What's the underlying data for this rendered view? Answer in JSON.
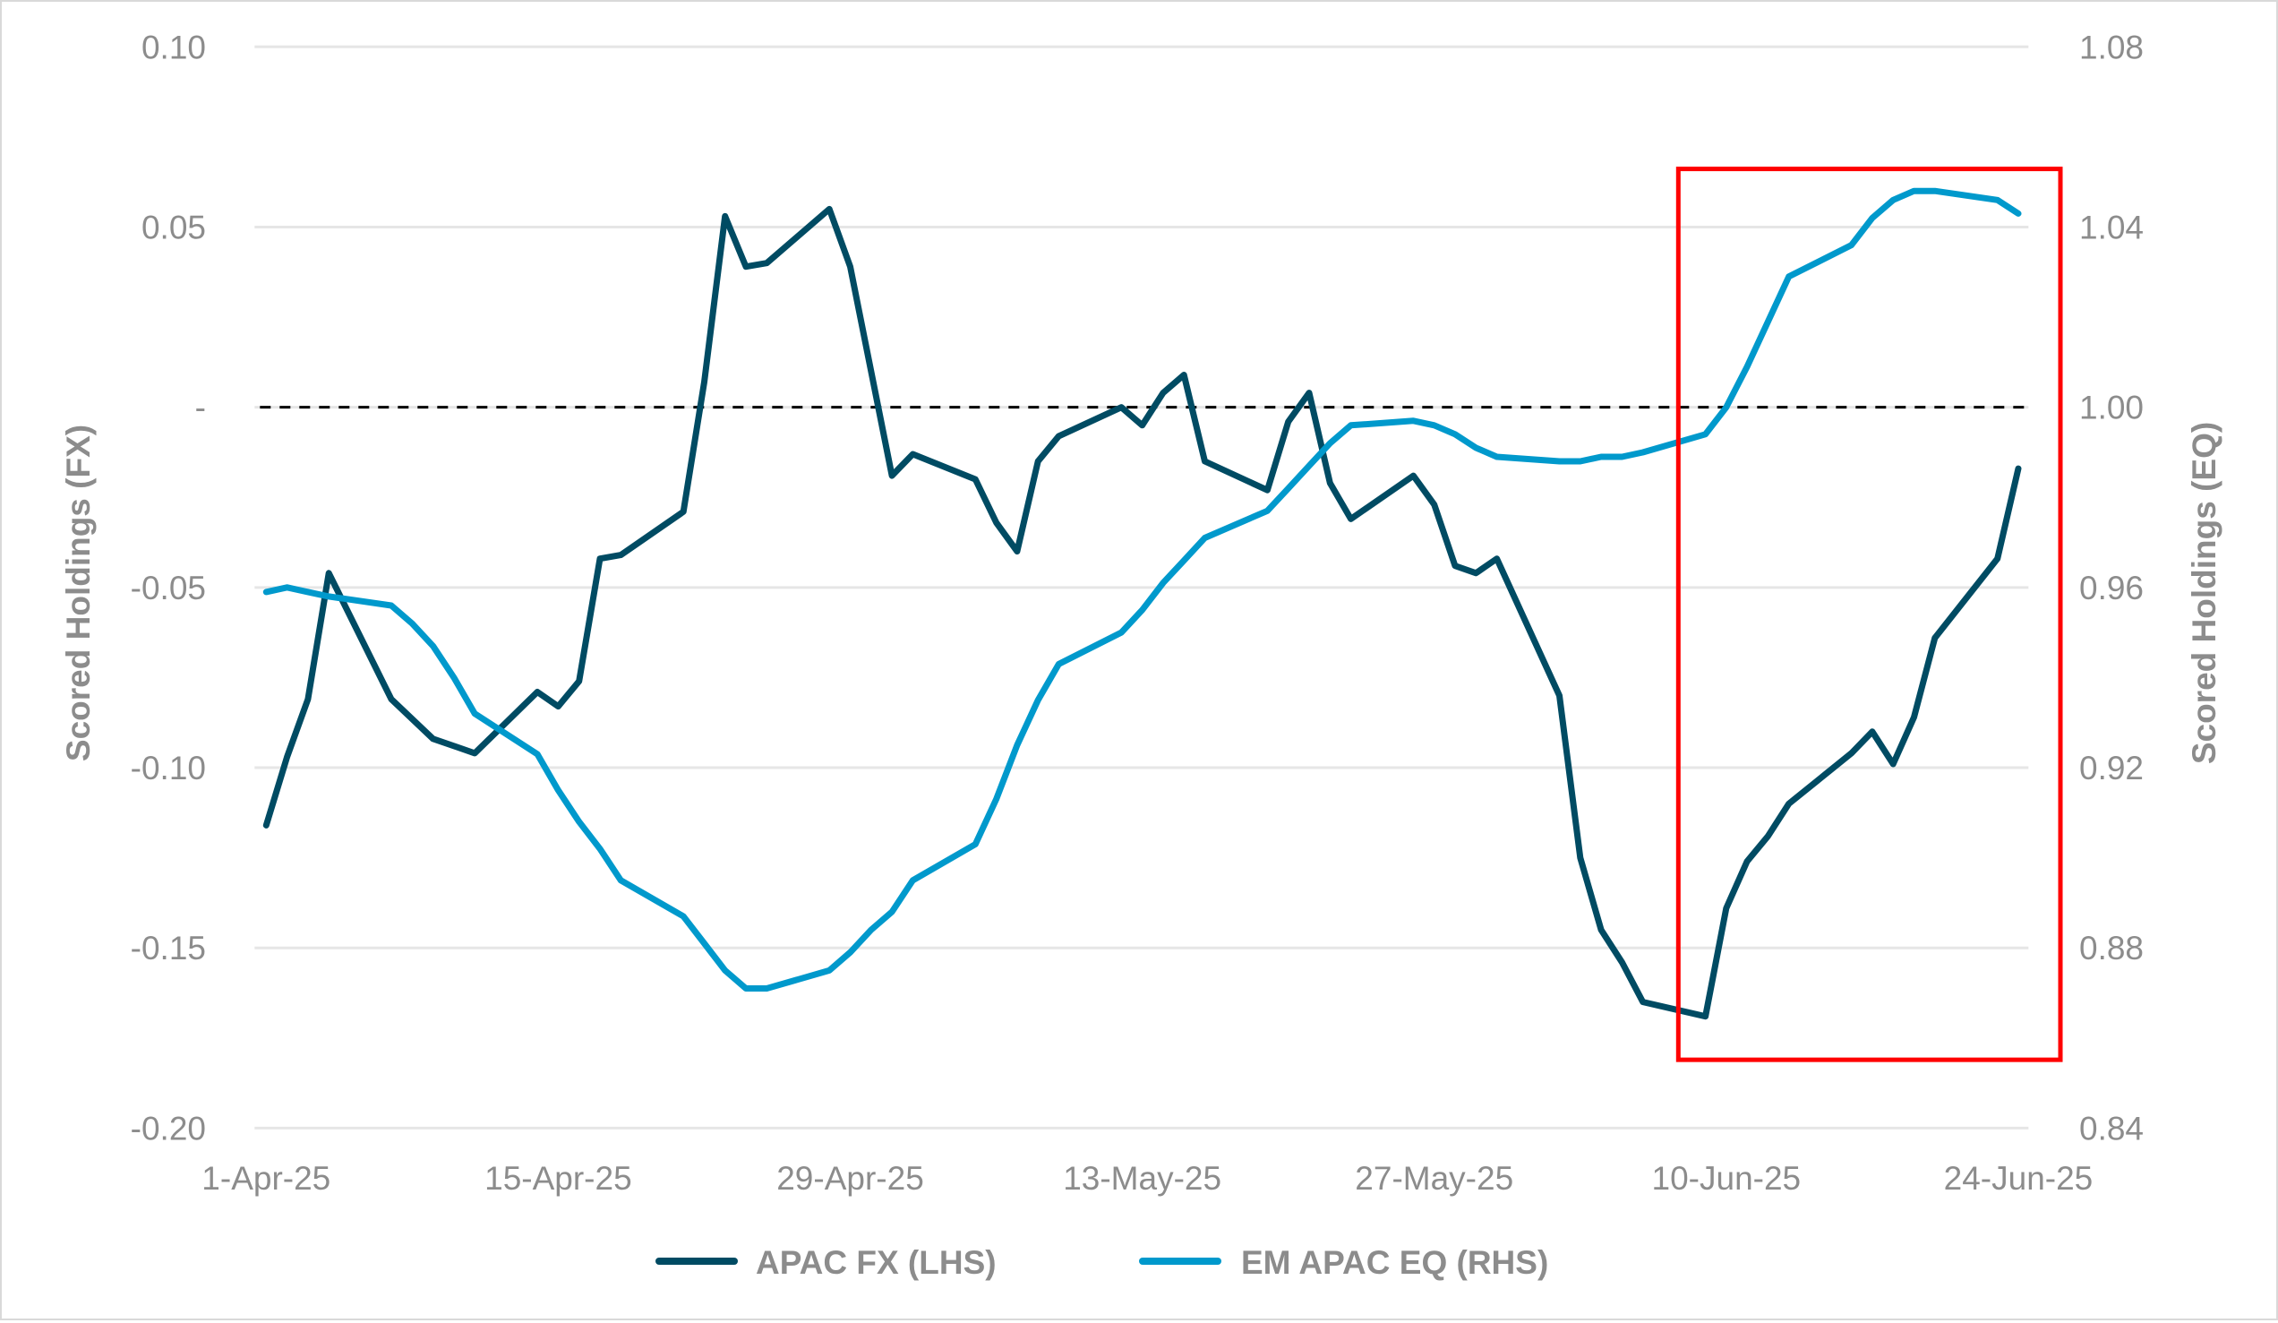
{
  "chart_data": {
    "type": "line",
    "title": "",
    "xlabel": "",
    "ylabel": "Scored Holdings (FX)",
    "ylabel_right": "Scored Holdings (EQ)",
    "ylim": [
      -0.2,
      0.1
    ],
    "ylim_right": [
      0.84,
      1.08
    ],
    "y_ticks": [
      "0.10",
      "0.05",
      "-",
      "-0.05",
      "-0.10",
      "-0.15",
      "-0.20"
    ],
    "y_tick_values": [
      0.1,
      0.05,
      0.0,
      -0.05,
      -0.1,
      -0.15,
      -0.2
    ],
    "y_right_ticks": [
      "1.08",
      "1.04",
      "1.00",
      "0.96",
      "0.92",
      "0.88",
      "0.84"
    ],
    "y_right_tick_values": [
      1.08,
      1.04,
      1.0,
      0.96,
      0.92,
      0.88,
      0.84
    ],
    "x_ticks": [
      "1-Apr-25",
      "15-Apr-25",
      "29-Apr-25",
      "13-May-25",
      "27-May-25",
      "10-Jun-25",
      "24-Jun-25"
    ],
    "x_tick_days": [
      0,
      14,
      28,
      42,
      56,
      70,
      84
    ],
    "grid": true,
    "zero_line": "dashed",
    "legend_position": "bottom",
    "highlight_box": {
      "from_day": 68.3,
      "to_day": 86.0,
      "y_top_lhs": 0.055,
      "y_bottom_lhs": -0.181,
      "color": "#ff0000"
    },
    "series": [
      {
        "name": "APAC FX (LHS)",
        "axis": "left",
        "color": "#004b63",
        "days": [
          0,
          1,
          2,
          3,
          6,
          8,
          10,
          13,
          14,
          15,
          16,
          17,
          20,
          21,
          22,
          23,
          24,
          27,
          28,
          30,
          31,
          34,
          35,
          36,
          37,
          38,
          41,
          42,
          43,
          44,
          45,
          48,
          49,
          50,
          51,
          52,
          55,
          56,
          57,
          58,
          59,
          62,
          63,
          64,
          65,
          66,
          69,
          70,
          71,
          72,
          73,
          76,
          77,
          78,
          79,
          80,
          83,
          84
        ],
        "values": [
          -0.116,
          -0.097,
          -0.081,
          -0.046,
          -0.081,
          -0.092,
          -0.096,
          -0.079,
          -0.083,
          -0.076,
          -0.042,
          -0.041,
          -0.029,
          0.007,
          0.053,
          0.039,
          0.04,
          0.055,
          0.039,
          -0.019,
          -0.013,
          -0.02,
          -0.032,
          -0.04,
          -0.015,
          -0.008,
          0.0,
          -0.005,
          0.004,
          0.009,
          -0.015,
          -0.023,
          -0.004,
          0.004,
          -0.021,
          -0.031,
          -0.019,
          -0.027,
          -0.044,
          -0.046,
          -0.042,
          -0.08,
          -0.125,
          -0.145,
          -0.154,
          -0.165,
          -0.169,
          -0.139,
          -0.126,
          -0.119,
          -0.11,
          -0.096,
          -0.09,
          -0.099,
          -0.086,
          -0.064,
          -0.042,
          -0.017
        ]
      },
      {
        "name": "EM APAC EQ (RHS)",
        "axis": "right",
        "color": "#0099cc",
        "days": [
          0,
          1,
          2,
          3,
          6,
          7,
          8,
          9,
          10,
          13,
          14,
          15,
          16,
          17,
          20,
          21,
          22,
          23,
          24,
          27,
          28,
          29,
          30,
          31,
          34,
          35,
          36,
          37,
          38,
          41,
          42,
          43,
          44,
          45,
          48,
          49,
          50,
          51,
          52,
          55,
          56,
          57,
          58,
          59,
          62,
          63,
          64,
          65,
          66,
          69,
          70,
          71,
          72,
          73,
          76,
          77,
          78,
          79,
          80,
          83,
          84
        ],
        "values": [
          0.959,
          0.96,
          0.959,
          0.958,
          0.956,
          0.952,
          0.947,
          0.94,
          0.932,
          0.923,
          0.915,
          0.908,
          0.902,
          0.895,
          0.887,
          0.881,
          0.875,
          0.871,
          0.871,
          0.875,
          0.879,
          0.884,
          0.888,
          0.895,
          0.903,
          0.913,
          0.925,
          0.935,
          0.943,
          0.95,
          0.955,
          0.961,
          0.966,
          0.971,
          0.977,
          0.982,
          0.987,
          0.992,
          0.996,
          0.997,
          0.996,
          0.994,
          0.991,
          0.989,
          0.988,
          0.988,
          0.989,
          0.989,
          0.99,
          0.994,
          1.0,
          1.009,
          1.019,
          1.029,
          1.036,
          1.042,
          1.046,
          1.048,
          1.048,
          1.046,
          1.043
        ]
      }
    ]
  },
  "legend": {
    "items": [
      {
        "label": "APAC FX (LHS)",
        "color": "#004b63"
      },
      {
        "label": "EM APAC EQ (RHS)",
        "color": "#0099cc"
      }
    ]
  },
  "axes": {
    "left_title": "Scored Holdings (FX)",
    "right_title": "Scored Holdings (EQ)"
  }
}
